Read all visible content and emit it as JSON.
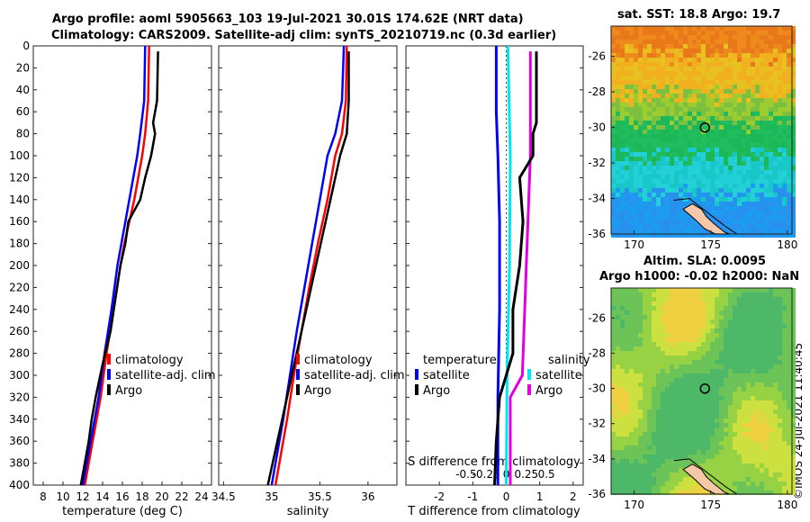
{
  "figure": {
    "title_line1": "Argo profile: aoml 5905663_103 19-Jul-2021 30.01S 174.62E (NRT data)",
    "title_line2": "Climatology: CARS2009. Satellite-adj clim: synTS_20210719.nc (0.3d earlier)",
    "stamp": "©IMOS 24-Jul-2021 11:40:45"
  },
  "colors": {
    "climatology": "#ff0000",
    "satellite": "#0000ff",
    "argo": "#000000",
    "salinity_satellite": "#00e5ee",
    "salinity_argo": "#e000e0"
  },
  "chart_data": [
    {
      "type": "line",
      "name": "temperature_profile",
      "xlabel": "temperature (deg C)",
      "ylabel": "",
      "xlim": [
        7,
        25
      ],
      "ylim": [
        400,
        0
      ],
      "xticks": [
        "8",
        "10",
        "12",
        "14",
        "16",
        "18",
        "20",
        "22",
        "24"
      ],
      "yticks": [
        "0",
        "20",
        "40",
        "60",
        "80",
        "100",
        "120",
        "140",
        "160",
        "180",
        "200",
        "220",
        "240",
        "260",
        "280",
        "300",
        "320",
        "340",
        "360",
        "380",
        "400"
      ],
      "legend": [
        "climatology",
        "satellite-adj. clim",
        "Argo"
      ],
      "series": [
        {
          "name": "climatology",
          "depth": [
            0,
            50,
            80,
            100,
            120,
            140,
            160,
            180,
            200,
            240,
            280,
            320,
            360,
            400
          ],
          "values": [
            18.7,
            18.6,
            18.3,
            18.0,
            17.6,
            17.2,
            16.7,
            16.2,
            15.8,
            15.1,
            14.4,
            13.8,
            13.0,
            12.2
          ]
        },
        {
          "name": "satellite-adj. clim",
          "depth": [
            0,
            50,
            80,
            100,
            120,
            140,
            160,
            180,
            200,
            240,
            280,
            320,
            360,
            400
          ],
          "values": [
            18.3,
            18.2,
            17.8,
            17.5,
            17.1,
            16.7,
            16.3,
            15.9,
            15.5,
            14.9,
            14.2,
            13.6,
            12.8,
            12.0
          ]
        },
        {
          "name": "Argo",
          "depth": [
            5,
            50,
            70,
            80,
            100,
            120,
            140,
            160,
            180,
            200,
            230,
            260,
            290,
            320,
            340,
            360,
            380,
            400
          ],
          "values": [
            19.6,
            19.5,
            19.1,
            19.3,
            18.9,
            18.3,
            17.8,
            16.6,
            16.3,
            15.8,
            15.3,
            14.8,
            14.0,
            13.3,
            12.9,
            12.6,
            12.2,
            11.8
          ]
        }
      ]
    },
    {
      "type": "line",
      "name": "salinity_profile",
      "xlabel": "salinity",
      "xlim": [
        34.45,
        36.3
      ],
      "ylim": [
        400,
        0
      ],
      "xticks": [
        "34.5",
        "35",
        "35.5",
        "36"
      ],
      "legend": [
        "climatology",
        "satellite-adj. clim",
        "Argo"
      ],
      "series": [
        {
          "name": "climatology",
          "depth": [
            0,
            50,
            80,
            100,
            140,
            180,
            220,
            260,
            300,
            340,
            380,
            400
          ],
          "values": [
            35.78,
            35.77,
            35.73,
            35.66,
            35.58,
            35.48,
            35.39,
            35.31,
            35.23,
            35.16,
            35.08,
            35.04
          ]
        },
        {
          "name": "satellite-adj. clim",
          "depth": [
            0,
            50,
            80,
            100,
            140,
            180,
            220,
            260,
            300,
            340,
            380,
            400
          ],
          "values": [
            35.75,
            35.73,
            35.66,
            35.58,
            35.5,
            35.42,
            35.34,
            35.26,
            35.19,
            35.12,
            35.04,
            35.0
          ]
        },
        {
          "name": "Argo",
          "depth": [
            5,
            50,
            80,
            100,
            140,
            180,
            220,
            260,
            300,
            340,
            380,
            400
          ],
          "values": [
            35.8,
            35.8,
            35.78,
            35.71,
            35.61,
            35.51,
            35.41,
            35.31,
            35.21,
            35.11,
            35.01,
            34.96
          ]
        }
      ]
    },
    {
      "type": "line",
      "name": "difference_profile",
      "xlabel": "T difference from climatology",
      "top_label": "S difference from climatology",
      "xlim": [
        -3,
        2.3
      ],
      "ylim": [
        400,
        0
      ],
      "xticks": [
        "-2",
        "-1",
        "0",
        "1",
        "2"
      ],
      "top_ticks": [
        "-0.5",
        "-0.25",
        "0",
        "0.25",
        "0.5"
      ],
      "legend_left": {
        "header": "temperature",
        "items": [
          "satellite",
          "Argo"
        ]
      },
      "legend_right": {
        "header": "salinity",
        "items": [
          "satellite",
          "Argo"
        ]
      },
      "series": [
        {
          "name": "T satellite",
          "depth": [
            0,
            60,
            100,
            160,
            240,
            320,
            400
          ],
          "values": [
            -0.3,
            -0.3,
            -0.25,
            -0.2,
            -0.2,
            -0.25,
            -0.25
          ]
        },
        {
          "name": "T Argo",
          "depth": [
            5,
            50,
            70,
            80,
            100,
            120,
            160,
            200,
            240,
            280,
            320,
            360,
            400
          ],
          "values": [
            0.9,
            0.9,
            0.9,
            0.8,
            0.8,
            0.4,
            0.5,
            0.4,
            0.2,
            0.2,
            -0.2,
            -0.3,
            -0.35
          ]
        },
        {
          "name": "S satellite",
          "depth": [
            0,
            100,
            200,
            300,
            400
          ],
          "values": [
            0.02,
            0.05,
            0.04,
            0.01,
            0.0
          ]
        },
        {
          "name": "S Argo",
          "depth": [
            5,
            100,
            200,
            300,
            320,
            400
          ],
          "values": [
            0.3,
            0.3,
            0.25,
            0.2,
            0.05,
            0.05
          ]
        }
      ]
    },
    {
      "type": "heatmap",
      "name": "sst_map",
      "title": "sat. SST: 18.8 Argo: 19.7",
      "xlim": [
        168.5,
        180.3
      ],
      "ylim": [
        -36,
        -24.3
      ],
      "xticks": [
        "170",
        "175",
        "180"
      ],
      "yticks": [
        "-26",
        "-28",
        "-30",
        "-32",
        "-34",
        "-36"
      ],
      "float_position": {
        "lon": 174.62,
        "lat": -30.01
      }
    },
    {
      "type": "heatmap",
      "name": "sla_map",
      "title": "Altim. SLA: 0.0095",
      "subtitle": "Argo h1000: -0.02 h2000: NaN",
      "xlim": [
        168.5,
        180.3
      ],
      "ylim": [
        -36,
        -24.3
      ],
      "xticks": [
        "170",
        "175",
        "180"
      ],
      "yticks": [
        "-26",
        "-28",
        "-30",
        "-32",
        "-34",
        "-36"
      ],
      "float_position": {
        "lon": 174.62,
        "lat": -30.01
      }
    }
  ]
}
